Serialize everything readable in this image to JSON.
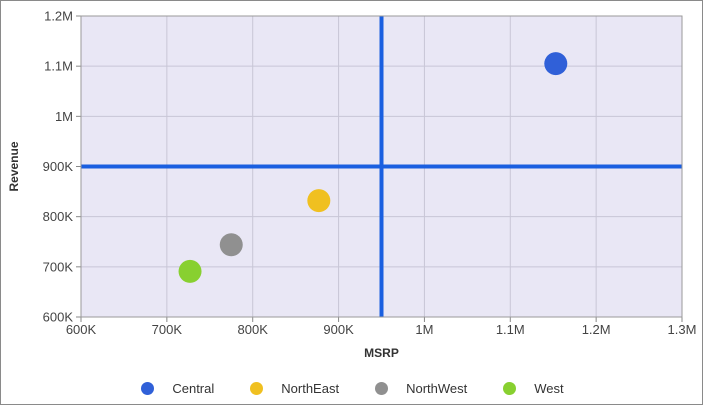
{
  "chart_data": {
    "type": "scatter",
    "title": "",
    "xlabel": "MSRP",
    "ylabel": "Revenue",
    "xlim": [
      600000,
      1300000
    ],
    "ylim": [
      600000,
      1200000
    ],
    "x_ticks": [
      600000,
      700000,
      800000,
      900000,
      1000000,
      1100000,
      1200000,
      1300000
    ],
    "x_tick_labels": [
      "600K",
      "700K",
      "800K",
      "900K",
      "1M",
      "1.1M",
      "1.2M",
      "1.3M"
    ],
    "y_ticks": [
      600000,
      700000,
      800000,
      900000,
      1000000,
      1100000,
      1200000
    ],
    "y_tick_labels": [
      "600K",
      "700K",
      "800K",
      "900K",
      "1M",
      "1.1M",
      "1.2M"
    ],
    "grid": true,
    "legend_position": "bottom",
    "reference_lines": {
      "x": 950000,
      "y": 900000,
      "color": "#1a5fe0"
    },
    "plot_background": "#e9e7f5",
    "series": [
      {
        "name": "Central",
        "color": "#3060d8",
        "x": [
          1153000
        ],
        "y": [
          1105000
        ]
      },
      {
        "name": "NorthEast",
        "color": "#f0c020",
        "x": [
          877000
        ],
        "y": [
          832000
        ]
      },
      {
        "name": "NorthWest",
        "color": "#909090",
        "x": [
          775000
        ],
        "y": [
          744000
        ]
      },
      {
        "name": "West",
        "color": "#88d030",
        "x": [
          727000
        ],
        "y": [
          691000
        ]
      }
    ]
  }
}
